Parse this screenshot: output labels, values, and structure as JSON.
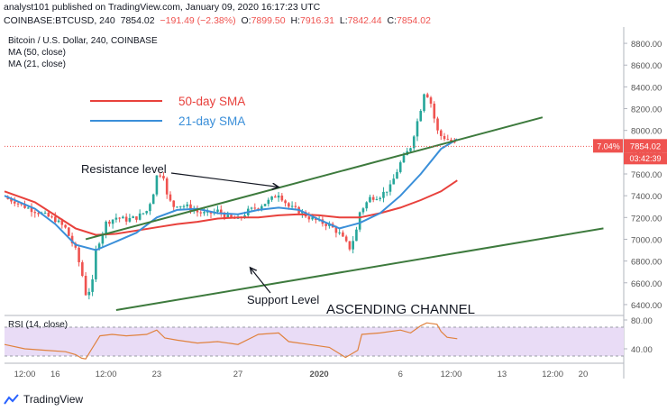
{
  "header": {
    "publisher": "analyst101 published on TradingView.com, January 09, 2020 16:17:23 UTC",
    "symbol": "COINBASE:BTCUSD, 240",
    "last": "7854.02",
    "change": "−191.49 (−2.38%)",
    "o_label": "O:",
    "o": "7899.50",
    "h_label": "H:",
    "h": "7916.31",
    "l_label": "L:",
    "l": "7842.44",
    "c_label": "C:",
    "c": "7854.02"
  },
  "footer": {
    "brand": "TradingView",
    "icon": "tradingview-logo-icon"
  },
  "colors": {
    "up": "#26a69a",
    "down": "#ef5350",
    "sma50": "#e8413c",
    "sma21": "#3a8fd9",
    "channel": "#3d7a3d",
    "rsi": "#e0823e",
    "rsi_band": "#e9dcf6"
  },
  "chart_data": [
    {
      "type": "candlestick",
      "title": "Bitcoin / U.S. Dollar, 240, COINBASE",
      "indicators": [
        "MA (50, close)",
        "MA (21, close)"
      ],
      "legend": [
        {
          "label": "50-day SMA",
          "color": "#e8413c"
        },
        {
          "label": "21-day SMA",
          "color": "#3a8fd9"
        }
      ],
      "annotations": {
        "resistance": "Resistance level",
        "support": "Support Level",
        "channel": "ASCENDING CHANNEL"
      },
      "y_ticks": [
        6400,
        6600,
        6800,
        7000,
        7200,
        7400,
        7600,
        7800,
        8000,
        8200,
        8400,
        8600,
        8800
      ],
      "ylim": [
        6300,
        8900
      ],
      "price_label": {
        "pct": "7.04%",
        "price": "7854.02",
        "countdown": "03:42:39"
      },
      "x_ticks": [
        {
          "label": "12:00",
          "day": 0.5
        },
        {
          "label": "16",
          "day": 2
        },
        {
          "label": "12:00",
          "day": 4.5
        },
        {
          "label": "23",
          "day": 7
        },
        {
          "label": "27",
          "day": 11
        },
        {
          "label": "2020",
          "day": 15
        },
        {
          "label": "6",
          "day": 19
        },
        {
          "label": "12:00",
          "day": 21.5
        },
        {
          "label": "13",
          "day": 24
        },
        {
          "label": "12:00",
          "day": 26.5
        },
        {
          "label": "20",
          "day": 28
        }
      ],
      "x_range_days": [
        -0.5,
        30
      ],
      "close_path": [
        [
          -0.5,
          7380
        ],
        [
          0,
          7350
        ],
        [
          0.5,
          7300
        ],
        [
          1,
          7260
        ],
        [
          1.5,
          7220
        ],
        [
          2,
          7180
        ],
        [
          2.5,
          7100
        ],
        [
          3,
          6900
        ],
        [
          3.3,
          6700
        ],
        [
          3.5,
          6500
        ],
        [
          3.8,
          6550
        ],
        [
          4.0,
          6900
        ],
        [
          4.3,
          7050
        ],
        [
          4.5,
          7150
        ],
        [
          5,
          7200
        ],
        [
          5.5,
          7180
        ],
        [
          6,
          7200
        ],
        [
          6.5,
          7260
        ],
        [
          6.8,
          7400
        ],
        [
          7,
          7580
        ],
        [
          7.3,
          7620
        ],
        [
          7.5,
          7400
        ],
        [
          7.8,
          7300
        ],
        [
          8,
          7320
        ],
        [
          8.5,
          7300
        ],
        [
          9,
          7250
        ],
        [
          9.5,
          7230
        ],
        [
          10,
          7260
        ],
        [
          10.5,
          7200
        ],
        [
          11,
          7180
        ],
        [
          11.5,
          7260
        ],
        [
          12,
          7300
        ],
        [
          12.5,
          7350
        ],
        [
          13,
          7420
        ],
        [
          13.5,
          7300
        ],
        [
          14,
          7260
        ],
        [
          14.5,
          7200
        ],
        [
          15,
          7160
        ],
        [
          15.5,
          7130
        ],
        [
          16,
          7050
        ],
        [
          16.5,
          6920
        ],
        [
          16.8,
          7050
        ],
        [
          17,
          7250
        ],
        [
          17.5,
          7380
        ],
        [
          18,
          7400
        ],
        [
          18.5,
          7480
        ],
        [
          19,
          7700
        ],
        [
          19.5,
          7850
        ],
        [
          20,
          8200
        ],
        [
          20.2,
          8380
        ],
        [
          20.5,
          8250
        ],
        [
          20.8,
          8000
        ],
        [
          21,
          7950
        ],
        [
          21.5,
          7900
        ],
        [
          21.8,
          7854
        ]
      ],
      "sma50": [
        [
          -0.5,
          7440
        ],
        [
          1,
          7340
        ],
        [
          2,
          7220
        ],
        [
          3,
          7100
        ],
        [
          4,
          7040
        ],
        [
          5,
          7050
        ],
        [
          6,
          7080
        ],
        [
          7,
          7110
        ],
        [
          8,
          7140
        ],
        [
          9,
          7160
        ],
        [
          10,
          7190
        ],
        [
          11,
          7200
        ],
        [
          12,
          7200
        ],
        [
          13,
          7220
        ],
        [
          14,
          7230
        ],
        [
          15,
          7220
        ],
        [
          16,
          7200
        ],
        [
          17,
          7200
        ],
        [
          18,
          7240
        ],
        [
          19,
          7290
        ],
        [
          20,
          7360
        ],
        [
          21,
          7440
        ],
        [
          21.8,
          7540
        ]
      ],
      "sma21": [
        [
          -0.5,
          7400
        ],
        [
          1,
          7280
        ],
        [
          2,
          7140
        ],
        [
          3,
          6950
        ],
        [
          4,
          6900
        ],
        [
          5,
          6980
        ],
        [
          6,
          7060
        ],
        [
          7,
          7200
        ],
        [
          8,
          7270
        ],
        [
          9,
          7280
        ],
        [
          10,
          7240
        ],
        [
          11,
          7230
        ],
        [
          12,
          7270
        ],
        [
          13,
          7290
        ],
        [
          14,
          7270
        ],
        [
          15,
          7180
        ],
        [
          16,
          7100
        ],
        [
          17,
          7150
        ],
        [
          18,
          7240
        ],
        [
          19,
          7400
        ],
        [
          20,
          7600
        ],
        [
          21,
          7830
        ],
        [
          21.8,
          7920
        ]
      ],
      "resistance_line": [
        [
          3.5,
          7000
        ],
        [
          26,
          8120
        ]
      ],
      "support_line": [
        [
          5,
          6350
        ],
        [
          29,
          7100
        ]
      ],
      "resistance_arrow": [
        [
          13,
          7480
        ],
        [
          11.5,
          7510
        ]
      ],
      "support_arrow": [
        [
          10.5,
          6520
        ],
        [
          11.6,
          6740
        ]
      ]
    },
    {
      "type": "line",
      "title": "RSI (14, close)",
      "y_ticks": [
        40,
        80
      ],
      "ylim": [
        20,
        85
      ],
      "band": [
        30,
        70
      ],
      "values": [
        [
          -0.5,
          46
        ],
        [
          0.5,
          40
        ],
        [
          1.5,
          38
        ],
        [
          2.5,
          36
        ],
        [
          3.0,
          32
        ],
        [
          3.3,
          27
        ],
        [
          3.5,
          26
        ],
        [
          3.8,
          40
        ],
        [
          4.2,
          58
        ],
        [
          4.8,
          60
        ],
        [
          5.5,
          58
        ],
        [
          6.5,
          60
        ],
        [
          7,
          66
        ],
        [
          7.4,
          55
        ],
        [
          8,
          52
        ],
        [
          9,
          48
        ],
        [
          10,
          50
        ],
        [
          11,
          46
        ],
        [
          12,
          60
        ],
        [
          13,
          62
        ],
        [
          13.5,
          50
        ],
        [
          14.5,
          46
        ],
        [
          15.5,
          42
        ],
        [
          16.3,
          28
        ],
        [
          16.9,
          38
        ],
        [
          17.1,
          60
        ],
        [
          18,
          62
        ],
        [
          19,
          66
        ],
        [
          19.5,
          62
        ],
        [
          20,
          72
        ],
        [
          20.3,
          76
        ],
        [
          20.8,
          74
        ],
        [
          21,
          64
        ],
        [
          21.3,
          56
        ],
        [
          21.8,
          54
        ]
      ]
    }
  ]
}
